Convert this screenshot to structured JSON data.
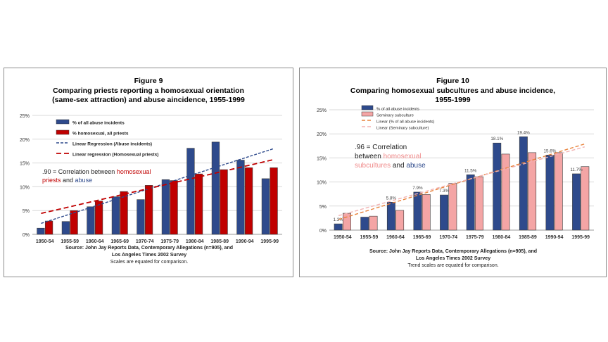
{
  "chart_data": [
    {
      "type": "bar",
      "figure_label": "Figure 9",
      "title": "Comparing priests reporting a homosexual orientation (same-sex attraction) and abuse aincidence, 1955-1999",
      "categories": [
        "1950-54",
        "1955-59",
        "1960-64",
        "1965-69",
        "1970-74",
        "1975-79",
        "1980-84",
        "1985-89",
        "1990-94",
        "1995-99"
      ],
      "series": [
        {
          "name": "% of all abuse incidents",
          "color": "#2e4a8c",
          "values": [
            1.3,
            2.7,
            5.8,
            7.9,
            7.3,
            11.5,
            18.1,
            19.4,
            15.6,
            11.7
          ]
        },
        {
          "name": "% homosexual, all priests",
          "color": "#c00000",
          "values": [
            2.8,
            5.0,
            7.0,
            9.0,
            10.3,
            11.3,
            12.7,
            13.6,
            14.0,
            14.0
          ]
        }
      ],
      "trendlines": [
        {
          "name": "Linear Regression (Abuse incidents)",
          "color": "#2e4a8c",
          "start": 2.3,
          "end": 18.0
        },
        {
          "name": "Linear regression (Homosexual priests)",
          "color": "#c00000",
          "start": 4.4,
          "end": 15.7
        }
      ],
      "ylim": [
        0,
        25
      ],
      "yticks": [
        "0%",
        "5%",
        "10%",
        "15%",
        "20%",
        "25%"
      ],
      "annotation": {
        "prefix": ".90 = Correlation between ",
        "highlight1": "homosexual",
        "line2_start": "priests",
        "line2_mid": " and ",
        "highlight2": "abuse"
      },
      "source": [
        "Source: John Jay Reports Data, Contemporary Allegations (n=905), and",
        "Los Angeles Times 2002 Survey",
        "Scales are equated for comparison."
      ],
      "grid": true,
      "legend_position": "top-left"
    },
    {
      "type": "bar",
      "figure_label": "Figure 10",
      "title": "Comparing homosexual subcultures and abuse incidence, 1955-1999",
      "categories": [
        "1950-54",
        "1955-59",
        "1960-64",
        "1965-69",
        "1970-74",
        "1975-79",
        "1980-84",
        "1985-89",
        "1990-94",
        "1995-99"
      ],
      "series": [
        {
          "name": "% of all abuse incidents",
          "color": "#2e4a8c",
          "values": [
            1.3,
            2.7,
            5.8,
            7.9,
            7.3,
            11.5,
            18.1,
            19.4,
            15.6,
            11.7
          ]
        },
        {
          "name": "Seminary subculture",
          "color": "#f4a5a5",
          "values": [
            3.5,
            2.9,
            4.1,
            7.4,
            9.7,
            11.1,
            15.8,
            16.1,
            16.1,
            13.2
          ]
        }
      ],
      "data_labels": [
        "1.3%",
        "",
        "5.8%",
        "7.9%",
        "7.3%",
        "11.5%",
        "18.1%",
        "19.4%",
        "15.6%",
        "11.7%"
      ],
      "trendlines": [
        {
          "name": "Linear (% of all abuse incidents)",
          "color": "#e8823a",
          "start": 2.2,
          "end": 17.9
        },
        {
          "name": "Linear (Seminary subculture)",
          "color": "#f2b2b2",
          "start": 3.0,
          "end": 17.3
        }
      ],
      "ylim": [
        0,
        25
      ],
      "yticks": [
        "0%",
        "5%",
        "10%",
        "15%",
        "20%",
        "25%"
      ],
      "annotation": {
        "prefix": ".96 = Correlation",
        "line2": "between ",
        "highlight1": "homosexual",
        "line3_hl": "subcultures",
        "line3_mid": " and ",
        "highlight2": "abuse"
      },
      "source": [
        "Source: John Jay Reports Data, Contemporary Allegations (n=905), and",
        "Los Angeles Times 2002 Survey",
        "Trend scales are equated for comparison."
      ],
      "grid": true,
      "legend_position": "top-left"
    }
  ]
}
